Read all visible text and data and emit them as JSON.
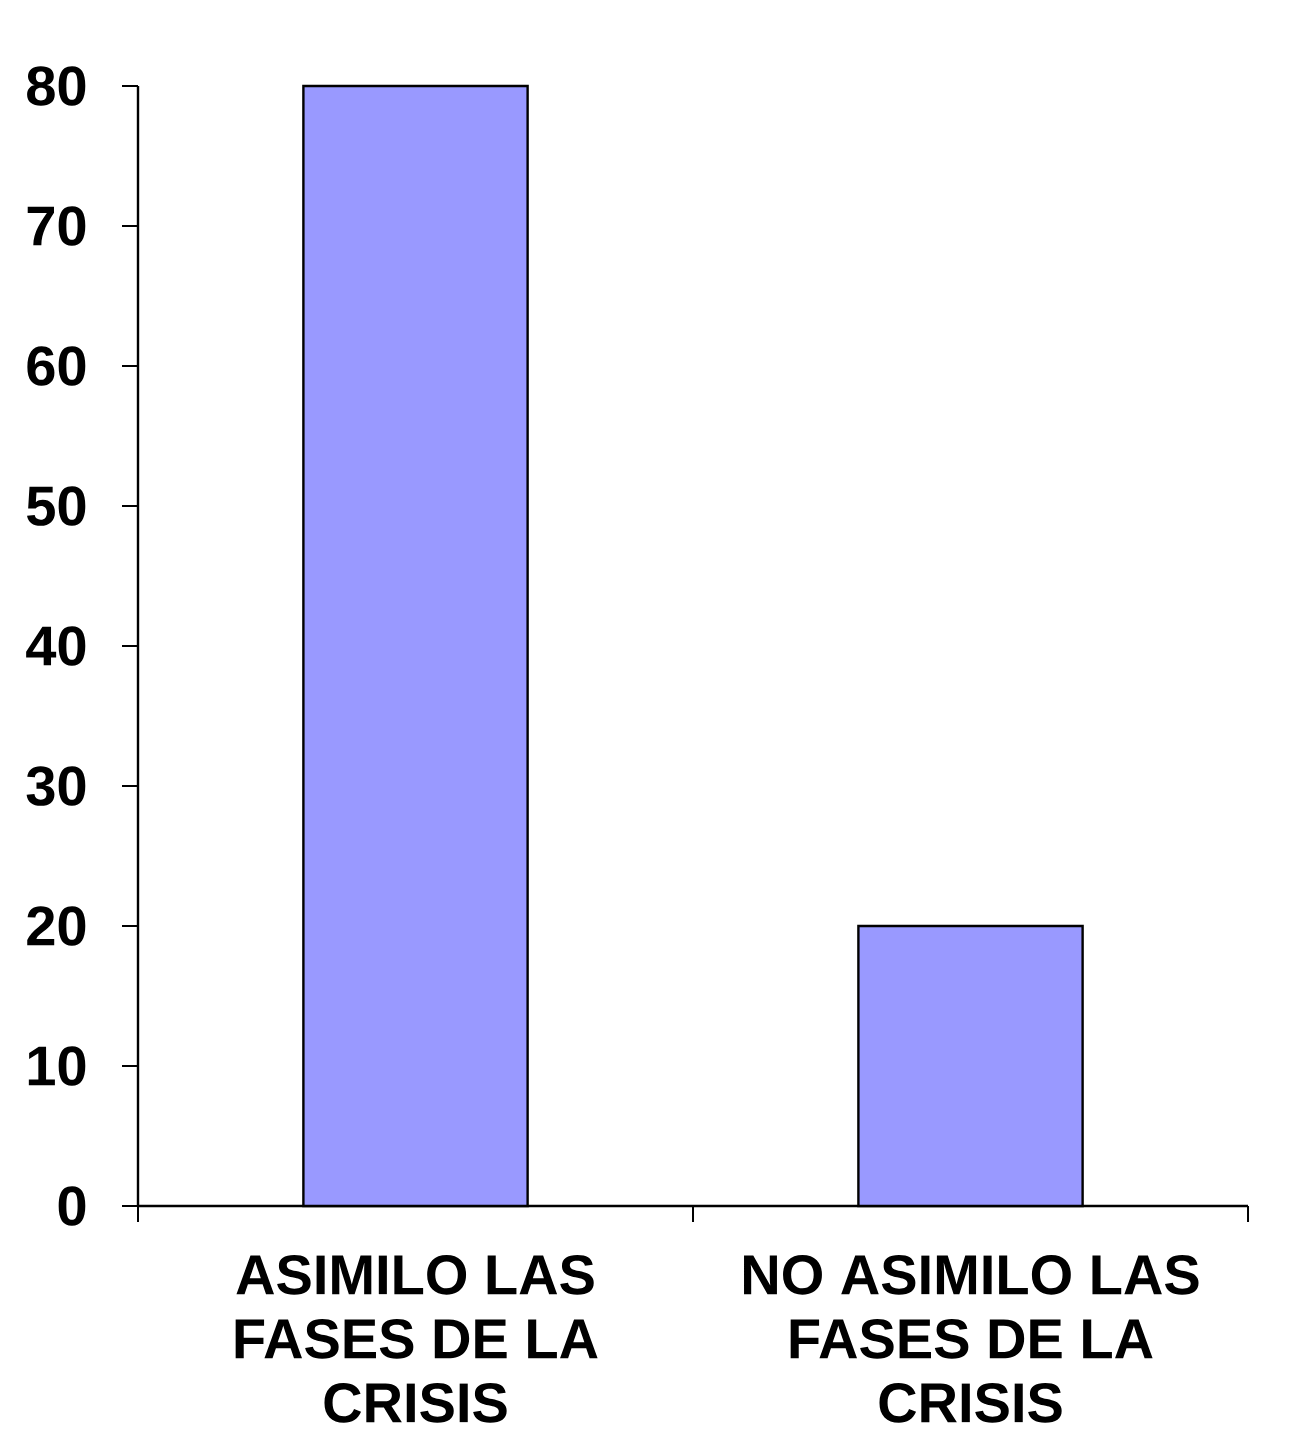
{
  "chart_data": {
    "type": "bar",
    "categories": [
      "ASIMILO LAS FASES DE LA CRISIS",
      "NO ASIMILO LAS FASES DE LA CRISIS"
    ],
    "values": [
      80,
      20
    ],
    "color": "#9999ff",
    "ylim": [
      0,
      80
    ],
    "yticks": [
      0,
      10,
      20,
      30,
      40,
      50,
      60,
      70,
      80
    ]
  }
}
